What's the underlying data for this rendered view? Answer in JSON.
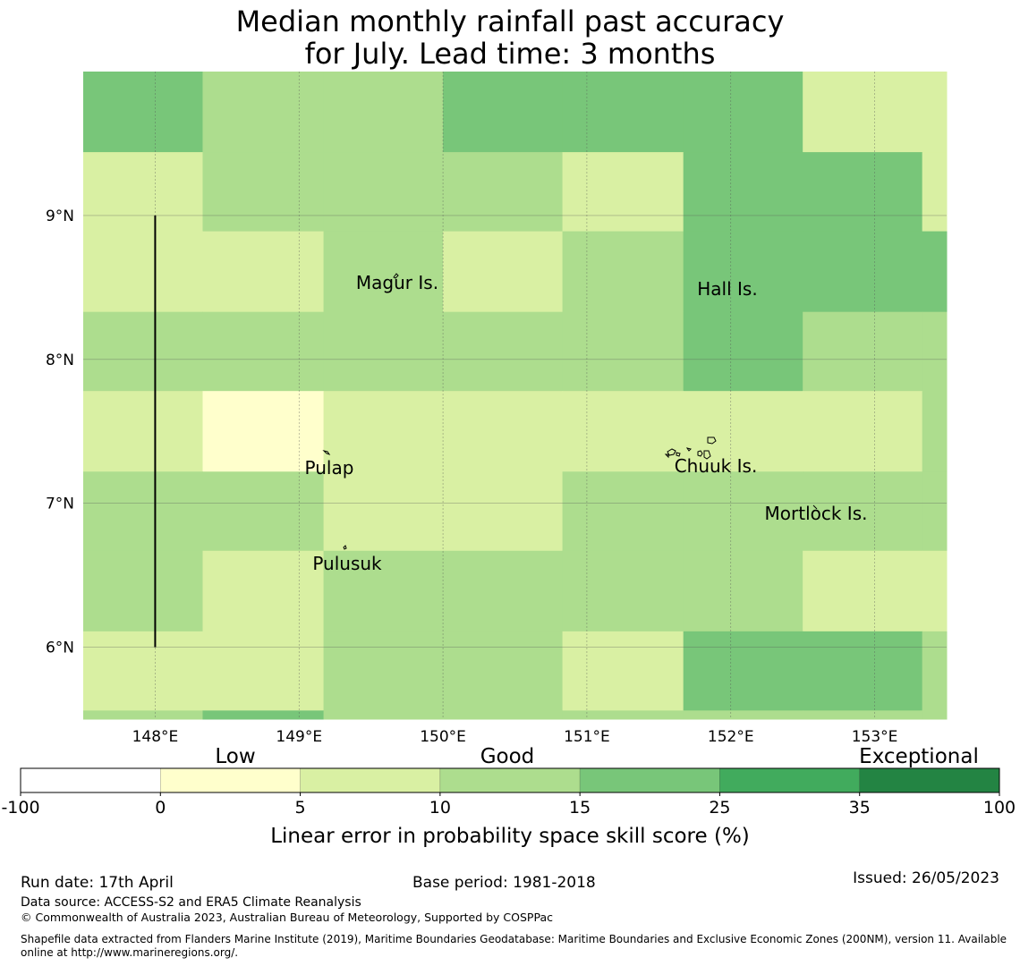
{
  "title": {
    "line1": "Median monthly rainfall past accuracy",
    "line2": "for July. Lead time: 3 months"
  },
  "map": {
    "lon_range": [
      147.5,
      153.5
    ],
    "lat_range": [
      5.5,
      10.0
    ],
    "cell_lon_edges": [
      147.5,
      148.33,
      149.17,
      150.0,
      150.83,
      151.67,
      152.5,
      153.33,
      153.5
    ],
    "cell_lat_edges_top_down": [
      10.0,
      9.44,
      8.89,
      8.33,
      7.78,
      7.22,
      6.67,
      6.11,
      5.56,
      5.5
    ],
    "grid_values_top_down": [
      [
        20,
        12,
        12,
        20,
        20,
        20,
        7,
        7
      ],
      [
        7,
        12,
        12,
        12,
        7,
        20,
        20,
        7
      ],
      [
        7,
        7,
        12,
        7,
        12,
        20,
        20,
        20
      ],
      [
        12,
        12,
        12,
        12,
        12,
        20,
        12,
        12
      ],
      [
        7,
        2,
        7,
        7,
        7,
        7,
        7,
        12
      ],
      [
        12,
        12,
        7,
        7,
        12,
        12,
        12,
        12
      ],
      [
        12,
        7,
        12,
        12,
        12,
        12,
        7,
        7
      ],
      [
        7,
        7,
        12,
        12,
        7,
        20,
        20,
        12
      ],
      [
        12,
        20,
        12,
        12,
        12,
        12,
        12,
        12
      ]
    ],
    "lon_ticks": [
      148,
      149,
      150,
      151,
      152,
      153
    ],
    "lon_tick_labels": [
      "148°E",
      "149°E",
      "150°E",
      "151°E",
      "152°E",
      "153°E"
    ],
    "lat_ticks": [
      9,
      8,
      7,
      6
    ],
    "lat_tick_labels": [
      "9°N",
      "8°N",
      "7°N",
      "6°N"
    ],
    "grid": true,
    "boundary_line": {
      "lon": 148.0,
      "lat_from": 9.0,
      "lat_to": 6.0
    },
    "places": [
      {
        "name": "Magur Is.",
        "lon": 149.68,
        "lat": 8.52
      },
      {
        "name": "Hall Is.",
        "lon": 151.97,
        "lat": 8.48
      },
      {
        "name": "Pulap",
        "lon": 149.2,
        "lat": 7.24
      },
      {
        "name": "Chuuk Is.",
        "lon": 151.9,
        "lat": 7.26
      },
      {
        "name": "Mortlock Is.",
        "lon": 152.6,
        "lat": 6.93
      },
      {
        "name": "Pulusuk",
        "lon": 149.33,
        "lat": 6.6
      }
    ],
    "island_color": "#000000",
    "label_names": {
      "magur": "Magur Is.",
      "hall": "Hall Is.",
      "pulap": "Pulap",
      "chuuk": "Chuuk Is.",
      "mortlock": "Mortlock Is.",
      "pulusuk": "Pulusuk"
    }
  },
  "colorbar": {
    "bounds": [
      -100,
      0,
      5,
      10,
      15,
      25,
      35,
      100
    ],
    "tick_labels": [
      "-100",
      "0",
      "5",
      "10",
      "15",
      "25",
      "35",
      "100"
    ],
    "colors": [
      "#ffffff",
      "#ffffcc",
      "#d9f0a3",
      "#addd8e",
      "#78c679",
      "#41ab5d",
      "#238443"
    ],
    "category_labels": {
      "low": "Low",
      "good": "Good",
      "exceptional": "Exceptional"
    },
    "axis_label": "Linear error in probability space skill score (%)"
  },
  "footer": {
    "run_date": "Run date: 17th April",
    "base_period": "Base period: 1981-2018",
    "issued": "Issued: 26/05/2023",
    "data_source": "Data source: ACCESS-S2 and ERA5 Climate Reanalysis",
    "copyright": "© Commonwealth of Australia 2023, Australian Bureau of Meteorology, Supported by COSPPac",
    "shapefile": "Shapefile data extracted from Flanders Marine Institute (2019), Maritime Boundaries Geodatabase: Maritime Boundaries and Exclusive Economic Zones (200NM), version 11. Available online at http://www.marineregions.org/."
  }
}
